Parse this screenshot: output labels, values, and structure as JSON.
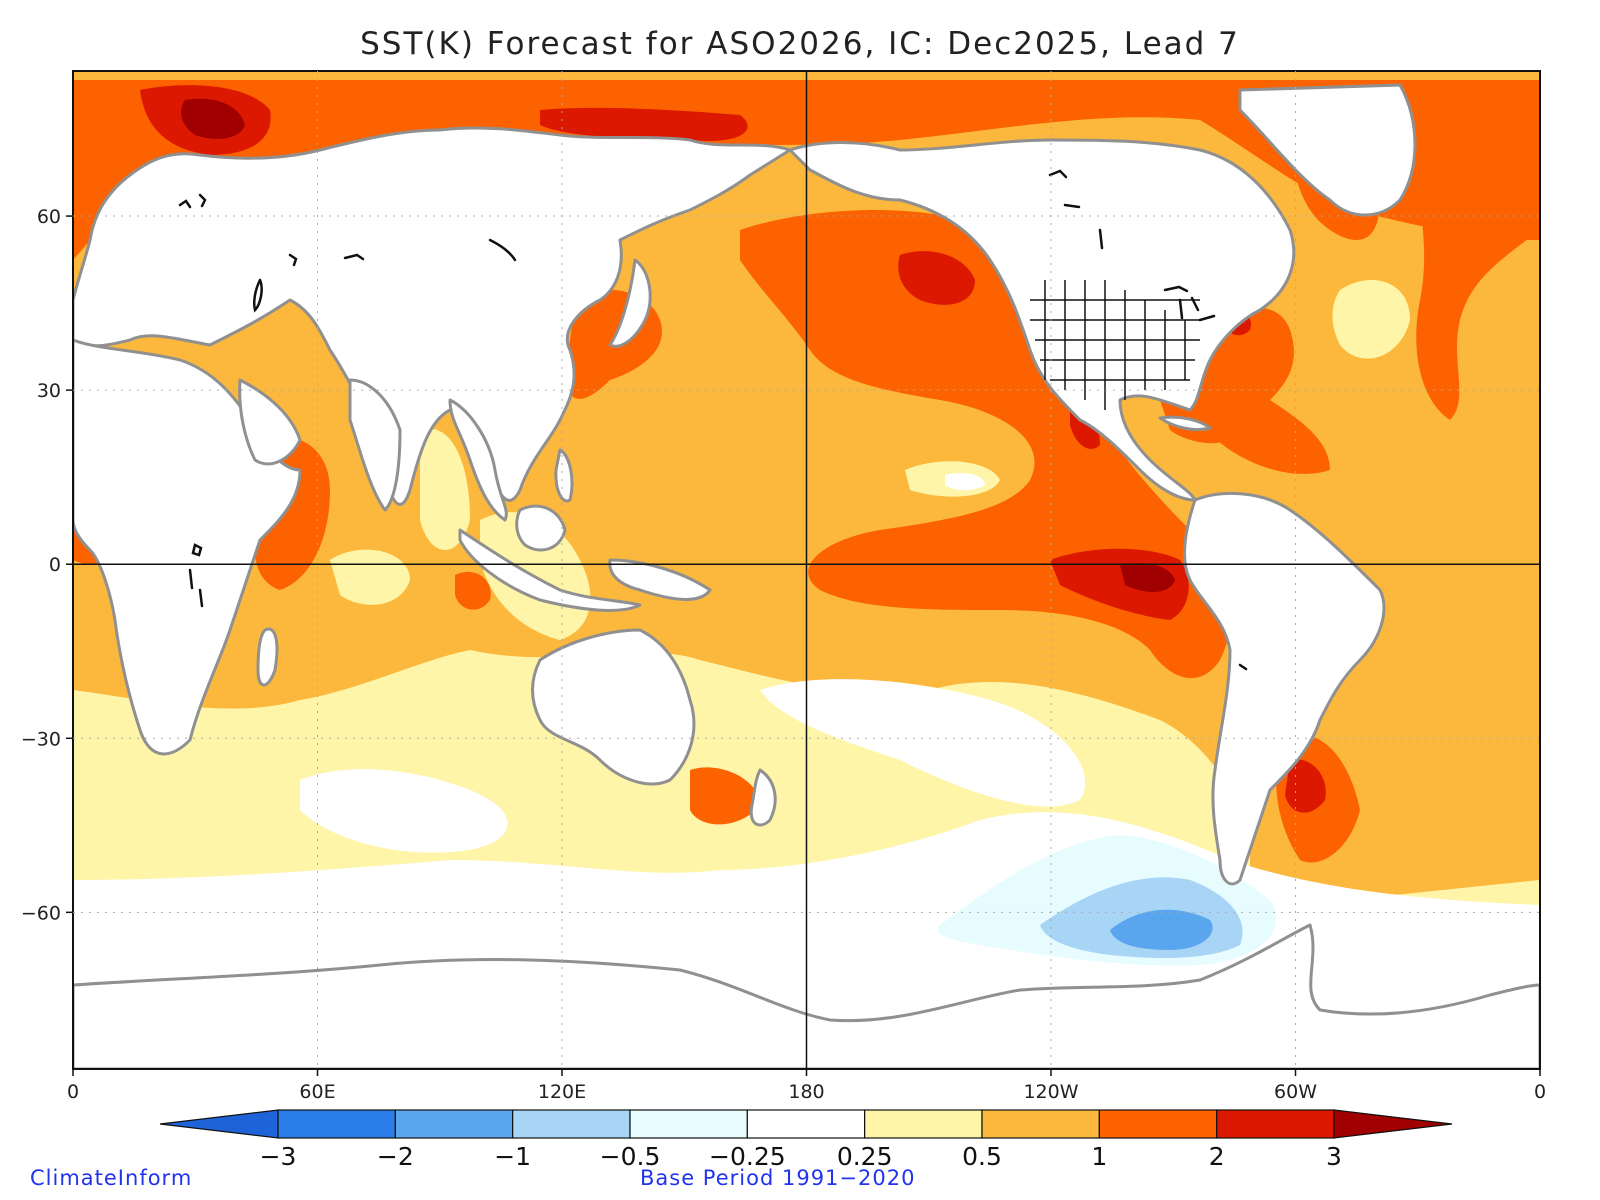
{
  "title": "SST(K) Forecast for ASO2026, IC: Dec2025, Lead 7",
  "map": {
    "projection": "equirectangular, 0 to 360 longitude",
    "lat_range": [
      -87,
      85
    ],
    "lon_range": [
      0,
      360
    ],
    "lat_ticks": [
      "60",
      "30",
      "0",
      "−30",
      "−60"
    ],
    "lat_tick_values": [
      60,
      30,
      0,
      -30,
      -60
    ],
    "lon_ticks": [
      "0",
      "60E",
      "120E",
      "180",
      "120W",
      "60W",
      "0"
    ],
    "lon_tick_values": [
      0,
      60,
      120,
      180,
      240,
      300,
      360
    ]
  },
  "colorbar": {
    "labels": [
      "−3",
      "−2",
      "−1",
      "−0.5",
      "−0.25",
      "0.25",
      "0.5",
      "1",
      "2",
      "3"
    ],
    "colors": [
      "#1e63d8",
      "#2b7de9",
      "#5aa6ee",
      "#a8d4f6",
      "#e6fcfe",
      "#ffffff",
      "#fef5a9",
      "#fbb83c",
      "#fc6200",
      "#dd1800",
      "#a00000"
    ]
  },
  "colors": {
    "land": "#ffffff",
    "coast": "#909090",
    "lakes": "#111111",
    "credit_text": "#2233ee"
  },
  "credit_left": "ClimateInform",
  "credit_center": "Base Period 1991−2020"
}
